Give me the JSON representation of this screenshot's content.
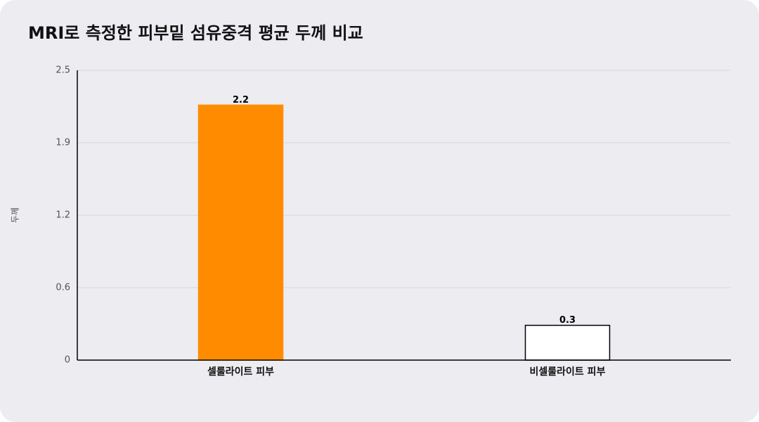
{
  "chart_data": {
    "type": "bar",
    "title": "MRI로 측정한 피부밑 섬유중격 평균 두께 비교",
    "ylabel": "두께",
    "categories": [
      "셀룰라이트 피부",
      "비셀룰라이트 피부"
    ],
    "values": [
      2.2,
      0.3
    ],
    "colors": [
      "#ff8c00",
      "#ffffff"
    ],
    "edge_colors": [
      "#ff8c00",
      "#000000"
    ],
    "ylim": [
      0,
      2.5
    ],
    "yticks": [
      0,
      {
        "value": 0.625,
        "label": "0.6"
      },
      {
        "value": 1.25,
        "label": "1.2"
      },
      {
        "value": 1.875,
        "label": "1.9"
      },
      2.5
    ],
    "grid": true
  }
}
